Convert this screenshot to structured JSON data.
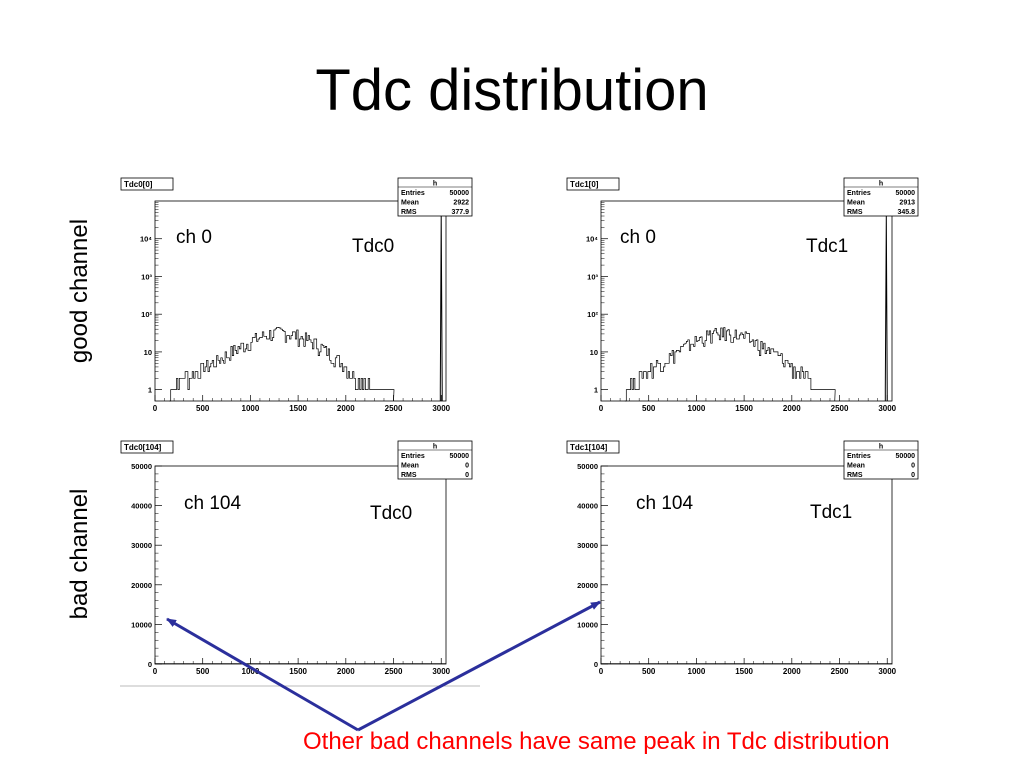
{
  "slide": {
    "title": "Tdc distribution",
    "row_labels": {
      "good": "good channel",
      "bad": "bad channel"
    },
    "note": "Other bad channels have same peak in Tdc distribution",
    "note_color": "#ff0000",
    "arrow_color": "#2b2f9c"
  },
  "chart_data": [
    {
      "type": "bar",
      "title": "Tdc0[0]",
      "tag": "Tdc0",
      "channel_label": "ch 0",
      "stats": {
        "title": "h",
        "rows": [
          [
            "Entries",
            "50000"
          ],
          [
            "Mean",
            "2922"
          ],
          [
            "RMS",
            "377.9"
          ]
        ]
      },
      "xlim": [
        0,
        3050
      ],
      "x_ticks": [
        0,
        500,
        1000,
        1500,
        2000,
        2500,
        3000
      ],
      "y_scale": "log",
      "y_ticks": [
        {
          "v": 1,
          "label": "1"
        },
        {
          "v": 10,
          "label": "10"
        },
        {
          "v": 100,
          "label": "10²"
        },
        {
          "v": 1000,
          "label": "10³"
        },
        {
          "v": 10000,
          "label": "10⁴"
        }
      ],
      "ylim": [
        0.5,
        100000
      ],
      "histogram": {
        "background": [
          [
            150,
            1
          ],
          [
            300,
            2
          ],
          [
            450,
            3
          ],
          [
            600,
            5
          ],
          [
            750,
            8
          ],
          [
            900,
            14
          ],
          [
            1050,
            22
          ],
          [
            1200,
            30
          ],
          [
            1350,
            33
          ],
          [
            1500,
            26
          ],
          [
            1650,
            18
          ],
          [
            1800,
            10
          ],
          [
            1950,
            5
          ],
          [
            2100,
            2
          ],
          [
            2300,
            1
          ],
          [
            2500,
            1
          ]
        ],
        "peak": [
          [
            2990,
            1
          ],
          [
            3000,
            40000
          ],
          [
            3010,
            1
          ]
        ]
      }
    },
    {
      "type": "bar",
      "title": "Tdc1[0]",
      "tag": "Tdc1",
      "channel_label": "ch 0",
      "stats": {
        "title": "h",
        "rows": [
          [
            "Entries",
            "50000"
          ],
          [
            "Mean",
            "2913"
          ],
          [
            "RMS",
            "345.8"
          ]
        ]
      },
      "xlim": [
        0,
        3050
      ],
      "x_ticks": [
        0,
        500,
        1000,
        1500,
        2000,
        2500,
        3000
      ],
      "y_scale": "log",
      "y_ticks": [
        {
          "v": 1,
          "label": "1"
        },
        {
          "v": 10,
          "label": "10"
        },
        {
          "v": 100,
          "label": "10²"
        },
        {
          "v": 1000,
          "label": "10³"
        },
        {
          "v": 10000,
          "label": "10⁴"
        }
      ],
      "ylim": [
        0.5,
        100000
      ],
      "histogram": {
        "background": [
          [
            250,
            1
          ],
          [
            400,
            2
          ],
          [
            550,
            4
          ],
          [
            700,
            7
          ],
          [
            850,
            12
          ],
          [
            1000,
            20
          ],
          [
            1150,
            28
          ],
          [
            1300,
            32
          ],
          [
            1450,
            27
          ],
          [
            1600,
            18
          ],
          [
            1750,
            11
          ],
          [
            1900,
            6
          ],
          [
            2050,
            3
          ],
          [
            2250,
            1
          ],
          [
            2450,
            1
          ]
        ],
        "peak": [
          [
            2980,
            1
          ],
          [
            2990,
            40000
          ],
          [
            3000,
            1
          ]
        ]
      }
    },
    {
      "type": "bar",
      "title": "Tdc0[104]",
      "tag": "Tdc0",
      "channel_label": "ch 104",
      "stats": {
        "title": "h",
        "rows": [
          [
            "Entries",
            "50000"
          ],
          [
            "Mean",
            "0"
          ],
          [
            "RMS",
            "0"
          ]
        ]
      },
      "xlim": [
        0,
        3050
      ],
      "x_ticks": [
        0,
        500,
        1000,
        1500,
        2000,
        2500,
        3000
      ],
      "y_scale": "linear",
      "y_ticks": [
        {
          "v": 0,
          "label": "0"
        },
        {
          "v": 10000,
          "label": "10000"
        },
        {
          "v": 20000,
          "label": "20000"
        },
        {
          "v": 30000,
          "label": "30000"
        },
        {
          "v": 40000,
          "label": "40000"
        },
        {
          "v": 50000,
          "label": "50000"
        }
      ],
      "ylim": [
        0,
        50000
      ]
    },
    {
      "type": "bar",
      "title": "Tdc1[104]",
      "tag": "Tdc1",
      "channel_label": "ch 104",
      "stats": {
        "title": "h",
        "rows": [
          [
            "Entries",
            "50000"
          ],
          [
            "Mean",
            "0"
          ],
          [
            "RMS",
            "0"
          ]
        ]
      },
      "xlim": [
        0,
        3050
      ],
      "x_ticks": [
        0,
        500,
        1000,
        1500,
        2000,
        2500,
        3000
      ],
      "y_scale": "linear",
      "y_ticks": [
        {
          "v": 0,
          "label": "0"
        },
        {
          "v": 10000,
          "label": "10000"
        },
        {
          "v": 20000,
          "label": "20000"
        },
        {
          "v": 30000,
          "label": "30000"
        },
        {
          "v": 40000,
          "label": "40000"
        },
        {
          "v": 50000,
          "label": "50000"
        }
      ],
      "ylim": [
        0,
        50000
      ]
    }
  ]
}
